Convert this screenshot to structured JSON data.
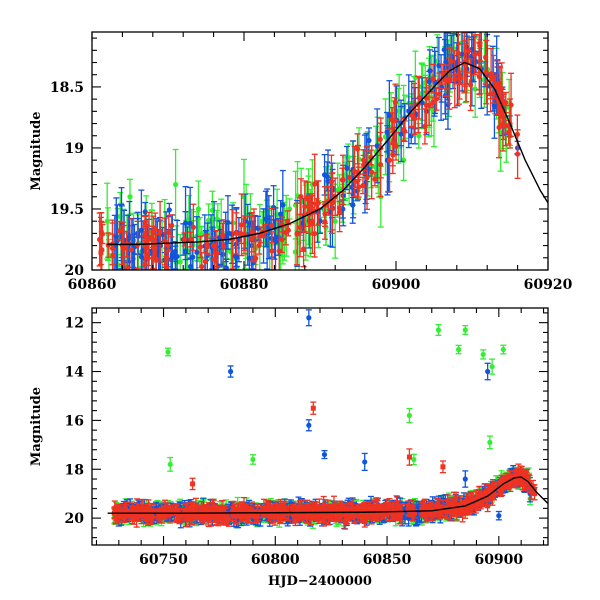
{
  "colors": {
    "green": "#33ee33",
    "blue": "#1155dd",
    "red": "#ee3322",
    "model": "#000000"
  },
  "chart_data": [
    {
      "type": "scatter",
      "panel": "top",
      "title": "",
      "xlabel": "",
      "ylabel": "Magnitude",
      "xlim": [
        60860,
        60920
      ],
      "ylim": [
        20.0,
        18.05
      ],
      "y_inverted": true,
      "xticks": [
        60860,
        60880,
        60900,
        60920
      ],
      "xtick_labels": [
        "60860",
        "60880",
        "60900",
        "60920"
      ],
      "yticks": [
        18.5,
        19.0,
        19.5,
        20.0
      ],
      "ytick_labels": [
        "18.5",
        "19",
        "19.5",
        "20"
      ],
      "series": [
        {
          "color": "green",
          "points": [
            [
              60862,
              19.6
            ],
            [
              60865,
              19.4
            ],
            [
              60868,
              19.7
            ],
            [
              60871,
              19.3
            ],
            [
              60874,
              19.5
            ],
            [
              60877,
              19.7
            ],
            [
              60880,
              19.4
            ],
            [
              60883,
              19.6
            ],
            [
              60886,
              19.5
            ],
            [
              60889,
              19.3
            ],
            [
              60892,
              19.6
            ],
            [
              60895,
              19.2
            ],
            [
              60898,
              19.4
            ],
            [
              60901,
              19.1
            ],
            [
              60903,
              18.9
            ],
            [
              60905,
              18.7
            ],
            [
              60907,
              18.4
            ],
            [
              60909,
              18.2
            ],
            [
              60911,
              18.35
            ],
            [
              60913,
              18.6
            ],
            [
              60915,
              18.9
            ]
          ]
        },
        {
          "color": "blue",
          "points": [
            [
              60863,
              19.8
            ],
            [
              60866,
              19.7
            ],
            [
              60869,
              19.8
            ],
            [
              60872,
              19.75
            ],
            [
              60875,
              19.8
            ],
            [
              60878,
              19.7
            ],
            [
              60881,
              19.8
            ],
            [
              60884,
              19.75
            ],
            [
              60887,
              19.7
            ],
            [
              60890,
              19.6
            ],
            [
              60893,
              19.5
            ],
            [
              60896,
              19.3
            ],
            [
              60899,
              19.1
            ],
            [
              60902,
              18.9
            ],
            [
              60904,
              18.7
            ],
            [
              60906,
              18.5
            ],
            [
              60908,
              18.3
            ],
            [
              60910,
              18.25
            ],
            [
              60912,
              18.4
            ],
            [
              60914,
              18.7
            ],
            [
              60916,
              19.0
            ]
          ]
        },
        {
          "color": "red",
          "points": [
            [
              60861,
              19.75
            ],
            [
              60864,
              19.8
            ],
            [
              60867,
              19.7
            ],
            [
              60870,
              19.8
            ],
            [
              60873,
              19.75
            ],
            [
              60876,
              19.8
            ],
            [
              60879,
              19.7
            ],
            [
              60882,
              19.8
            ],
            [
              60885,
              19.75
            ],
            [
              60889,
              19.6
            ],
            [
              60892,
              19.4
            ],
            [
              60895,
              19.2
            ],
            [
              60898,
              19.0
            ],
            [
              60901,
              18.85
            ],
            [
              60904,
              18.65
            ],
            [
              60907,
              18.45
            ],
            [
              60909,
              18.3
            ],
            [
              60911,
              18.35
            ],
            [
              60913,
              18.5
            ],
            [
              60915,
              18.8
            ],
            [
              60916,
              19.05
            ]
          ]
        }
      ],
      "model_curve": [
        [
          60862,
          19.79
        ],
        [
          60866,
          19.79
        ],
        [
          60870,
          19.78
        ],
        [
          60874,
          19.77
        ],
        [
          60878,
          19.75
        ],
        [
          60882,
          19.7
        ],
        [
          60886,
          19.62
        ],
        [
          60890,
          19.5
        ],
        [
          60893,
          19.35
        ],
        [
          60896,
          19.15
        ],
        [
          60899,
          18.93
        ],
        [
          60902,
          18.7
        ],
        [
          60905,
          18.5
        ],
        [
          60907,
          18.37
        ],
        [
          60909,
          18.3
        ],
        [
          60911,
          18.35
        ],
        [
          60913,
          18.52
        ],
        [
          60915,
          18.8
        ],
        [
          60917,
          19.1
        ],
        [
          60919,
          19.35
        ],
        [
          60920,
          19.45
        ]
      ]
    },
    {
      "type": "scatter",
      "panel": "bottom",
      "title": "",
      "xlabel": "HJD−2400000",
      "ylabel": "Magnitude",
      "xlim": [
        60718,
        60922
      ],
      "ylim": [
        21.1,
        11.4
      ],
      "y_inverted": true,
      "xticks": [
        60750,
        60800,
        60850,
        60900
      ],
      "xtick_labels": [
        "60750",
        "60800",
        "60850",
        "60900"
      ],
      "yticks": [
        12,
        14,
        16,
        18,
        20
      ],
      "ytick_labels": [
        "12",
        "14",
        "16",
        "18",
        "20"
      ],
      "series": [
        {
          "color": "green",
          "points": [
            [
              60728,
              19.9
            ],
            [
              60740,
              19.8
            ],
            [
              60752,
              13.2
            ],
            [
              60753,
              17.8
            ],
            [
              60765,
              19.7
            ],
            [
              60778,
              19.6
            ],
            [
              60790,
              17.6
            ],
            [
              60800,
              19.8
            ],
            [
              60815,
              19.7
            ],
            [
              60830,
              19.8
            ],
            [
              60845,
              19.6
            ],
            [
              60860,
              15.8
            ],
            [
              60862,
              17.6
            ],
            [
              60873,
              12.3
            ],
            [
              60880,
              19.7
            ],
            [
              60882,
              13.1
            ],
            [
              60885,
              12.3
            ],
            [
              60893,
              13.3
            ],
            [
              60896,
              16.9
            ],
            [
              60897,
              13.8
            ],
            [
              60902,
              13.1
            ],
            [
              60906,
              18.4
            ],
            [
              60910,
              18.3
            ],
            [
              60914,
              19.2
            ]
          ]
        },
        {
          "color": "blue",
          "points": [
            [
              60730,
              20.0
            ],
            [
              60745,
              19.9
            ],
            [
              60760,
              19.8
            ],
            [
              60775,
              19.7
            ],
            [
              60780,
              14.0
            ],
            [
              60790,
              19.6
            ],
            [
              60805,
              19.8
            ],
            [
              60815,
              11.8
            ],
            [
              60815,
              16.2
            ],
            [
              60822,
              17.4
            ],
            [
              60835,
              19.7
            ],
            [
              60840,
              17.7
            ],
            [
              60855,
              19.8
            ],
            [
              60870,
              19.6
            ],
            [
              60885,
              18.4
            ],
            [
              60895,
              14.0
            ],
            [
              60900,
              19.9
            ],
            [
              60908,
              18.6
            ],
            [
              60914,
              19.0
            ]
          ]
        },
        {
          "color": "red",
          "points": [
            [
              60728,
              19.8
            ],
            [
              60740,
              19.9
            ],
            [
              60752,
              19.7
            ],
            [
              60763,
              18.6
            ],
            [
              60770,
              19.8
            ],
            [
              60785,
              19.9
            ],
            [
              60800,
              19.8
            ],
            [
              60817,
              15.5
            ],
            [
              60825,
              19.8
            ],
            [
              60840,
              19.9
            ],
            [
              60855,
              19.8
            ],
            [
              60860,
              17.5
            ],
            [
              60870,
              19.8
            ],
            [
              60875,
              17.9
            ],
            [
              60885,
              19.7
            ],
            [
              60895,
              19.5
            ],
            [
              60905,
              18.6
            ],
            [
              60910,
              18.3
            ],
            [
              60916,
              19.0
            ]
          ]
        }
      ],
      "model_curve": [
        [
          60725,
          19.8
        ],
        [
          60760,
          19.8
        ],
        [
          60800,
          19.78
        ],
        [
          60840,
          19.76
        ],
        [
          60870,
          19.7
        ],
        [
          60885,
          19.5
        ],
        [
          60895,
          19.1
        ],
        [
          60902,
          18.6
        ],
        [
          60907,
          18.35
        ],
        [
          60910,
          18.32
        ],
        [
          60913,
          18.5
        ],
        [
          60917,
          18.95
        ],
        [
          60922,
          19.4
        ]
      ]
    }
  ]
}
